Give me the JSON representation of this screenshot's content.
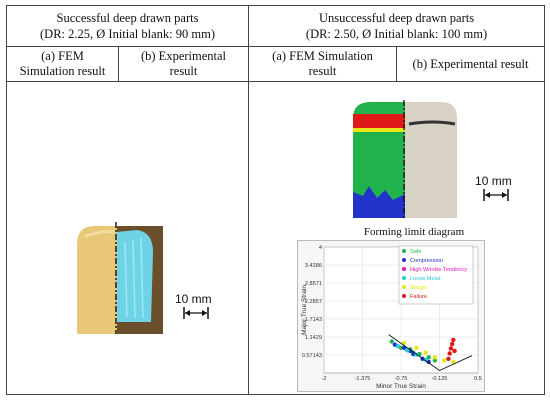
{
  "table": {
    "left_header_line1": "Successful deep drawn parts",
    "left_header_line2": "(DR: 2.25, Ø Initial blank: 90 mm)",
    "right_header_line1": "Unsuccessful  deep drawn parts",
    "right_header_line2": "(DR: 2.50, Ø Initial blank: 100 mm)",
    "sub_a_left_line1": "(a) FEM",
    "sub_a_left_line2": "Simulation result",
    "sub_b_left_line1": "(b) Experimental",
    "sub_b_left_line2": "result",
    "sub_a_right_line1": "(a) FEM Simulation",
    "sub_a_right_line2": "result",
    "sub_b_right": "(b) Experimental result"
  },
  "scale_left": "10 mm",
  "scale_right": "10 mm",
  "fld_title": "Forming limit diagram",
  "colors": {
    "safe": "#22b24c",
    "compression": "#2233cc",
    "wrinkle": "#e01ab8",
    "loose": "#29c9d8",
    "margin": "#e6e61a",
    "failure": "#e01818",
    "yellow_part": "#e8c878",
    "blue_part": "#6fd3e6"
  },
  "chart_data": {
    "type": "scatter",
    "title": "",
    "xlabel": "Minor True Strain",
    "ylabel": "Major True Strain",
    "xlim": [
      -2,
      0.5
    ],
    "ylim": [
      0,
      4
    ],
    "x_ticks": [
      "-2",
      "-1.375",
      "-0.75",
      "-0.125",
      "0.5"
    ],
    "y_ticks": [
      "0.57143",
      "1.1429",
      "1.7143",
      "2.2857",
      "2.8571",
      "3.4286",
      "4"
    ],
    "grid": true,
    "legend_position": "top-right",
    "legend": [
      {
        "label": "Safe",
        "color": "#22b24c"
      },
      {
        "label": "Compression",
        "color": "#2233cc"
      },
      {
        "label": "High Wrinkle Tendency",
        "color": "#e01ab8"
      },
      {
        "label": "Loose Metal",
        "color": "#29c9d8"
      },
      {
        "label": "Margin",
        "color": "#e6e61a"
      },
      {
        "label": "Failure",
        "color": "#e01818"
      }
    ],
    "series": [
      {
        "name": "Safe",
        "points": [
          [
            -0.75,
            0.8
          ],
          [
            -0.6,
            0.75
          ],
          [
            -0.45,
            0.6
          ],
          [
            -0.3,
            0.5
          ],
          [
            -0.2,
            0.4
          ],
          [
            -0.9,
            1.0
          ],
          [
            -0.55,
            0.65
          ]
        ]
      },
      {
        "name": "Compression",
        "points": [
          [
            -0.85,
            0.9
          ],
          [
            -0.7,
            0.8
          ],
          [
            -0.55,
            0.6
          ],
          [
            -0.4,
            0.45
          ],
          [
            -0.3,
            0.35
          ],
          [
            -0.6,
            0.7
          ]
        ]
      },
      {
        "name": "Loose Metal",
        "points": [
          [
            -0.8,
            0.85
          ],
          [
            -0.65,
            0.72
          ],
          [
            -0.5,
            0.58
          ],
          [
            -0.35,
            0.42
          ]
        ]
      },
      {
        "name": "Margin",
        "points": [
          [
            -0.7,
            0.95
          ],
          [
            -0.5,
            0.8
          ],
          [
            -0.35,
            0.65
          ],
          [
            -0.2,
            0.5
          ],
          [
            -0.05,
            0.4
          ],
          [
            0.1,
            0.35
          ]
        ]
      },
      {
        "name": "Failure",
        "points": [
          [
            0.02,
            0.45
          ],
          [
            0.04,
            0.62
          ],
          [
            0.06,
            0.78
          ],
          [
            0.08,
            0.92
          ],
          [
            0.1,
            1.05
          ],
          [
            0.12,
            0.7
          ]
        ]
      }
    ],
    "forming_limit_curve": [
      [
        -0.95,
        1.22
      ],
      [
        -0.125,
        0.08
      ],
      [
        0.4,
        0.55
      ]
    ]
  }
}
